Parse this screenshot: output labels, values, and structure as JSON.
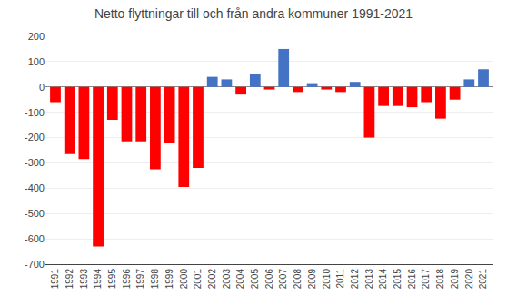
{
  "chart_data": {
    "type": "bar",
    "title": "Netto flyttningar till och från andra kommuner 1991-2021",
    "x": [
      1991,
      1992,
      1993,
      1994,
      1995,
      1996,
      1997,
      1998,
      1999,
      2000,
      2001,
      2002,
      2003,
      2004,
      2005,
      2006,
      2007,
      2008,
      2009,
      2010,
      2011,
      2012,
      2013,
      2014,
      2015,
      2016,
      2017,
      2018,
      2019,
      2020,
      2021
    ],
    "values": [
      -60,
      -265,
      -285,
      -630,
      -130,
      -215,
      -215,
      -325,
      -220,
      -395,
      -320,
      40,
      30,
      -30,
      50,
      -10,
      150,
      -20,
      15,
      -10,
      -20,
      20,
      -200,
      -75,
      -75,
      -80,
      -60,
      -125,
      -50,
      30,
      70
    ],
    "colors": [
      "#FF0000",
      "#FF0000",
      "#FF0000",
      "#FF0000",
      "#FF0000",
      "#FF0000",
      "#FF0000",
      "#FF0000",
      "#FF0000",
      "#FF0000",
      "#FF0000",
      "#4472C4",
      "#4472C4",
      "#FF0000",
      "#4472C4",
      "#FF0000",
      "#4472C4",
      "#FF0000",
      "#4472C4",
      "#FF0000",
      "#FF0000",
      "#4472C4",
      "#FF0000",
      "#FF0000",
      "#FF0000",
      "#FF0000",
      "#FF0000",
      "#FF0000",
      "#FF0000",
      "#4472C4",
      "#4472C4"
    ],
    "xlim": [
      1990.3,
      2021.7
    ],
    "xticks": [
      1991,
      1992,
      1993,
      1994,
      1995,
      1996,
      1997,
      1998,
      1999,
      2000,
      2001,
      2002,
      2003,
      2004,
      2005,
      2006,
      2007,
      2008,
      2009,
      2010,
      2011,
      2012,
      2013,
      2014,
      2015,
      2016,
      2017,
      2018,
      2019,
      2020,
      2021
    ],
    "ylim": [
      -700,
      200
    ],
    "yticks": [
      -700,
      -600,
      -500,
      -400,
      -300,
      -200,
      -100,
      0,
      100,
      200
    ],
    "grid": true
  }
}
